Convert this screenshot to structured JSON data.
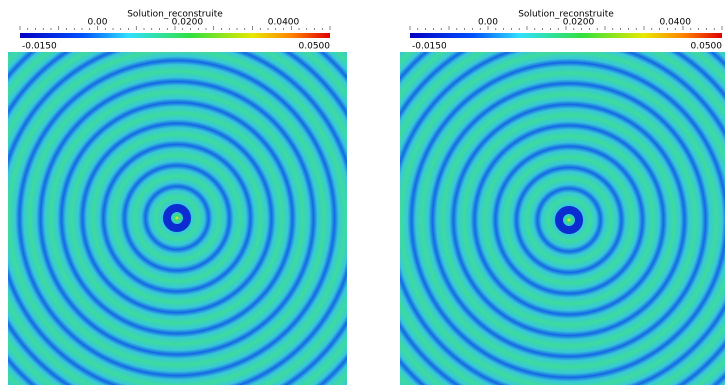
{
  "panels": [
    {
      "title": "Solution_reconstruite",
      "upper_ticks": [
        "0.00",
        "0.0200",
        "0.0400"
      ],
      "min_label": "-0.0150",
      "max_label": "0.0500"
    },
    {
      "title": "Solution_reconstruite",
      "upper_ticks": [
        "0.00",
        "0.0200",
        "0.0400"
      ],
      "min_label": "-0.0150",
      "max_label": "0.0500"
    }
  ]
}
